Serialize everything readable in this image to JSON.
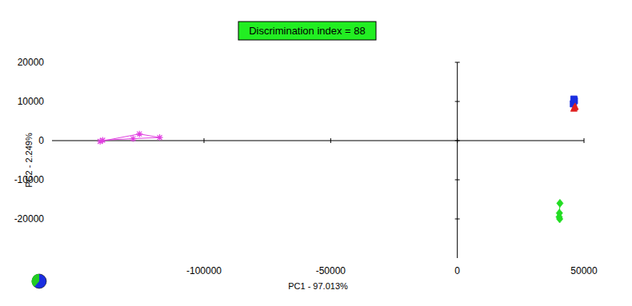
{
  "chart_data": {
    "type": "scatter",
    "title": "Discrimination index = 88",
    "x_label": "PC1 - 97.013%",
    "y_label": "PC2 - 2.249%",
    "xlim": [
      -160000,
      50000
    ],
    "ylim": [
      -30000,
      20000
    ],
    "xticks": [
      -100000,
      -50000,
      0,
      50000
    ],
    "yticks": [
      20000,
      10000,
      0,
      -10000,
      -20000
    ],
    "grid": false,
    "series": [
      {
        "color": "#e040e0",
        "marker": "star",
        "line_style": "solid",
        "x": [
          -141000,
          -125500,
          -117500,
          -128000,
          -140000
        ],
        "values": [
          -200,
          1700,
          800,
          500,
          100
        ]
      },
      {
        "color": "#1a2ee0",
        "marker": "square",
        "line_style": "none",
        "x": [
          45800,
          46200,
          46000
        ],
        "values": [
          9400,
          10200,
          10600
        ]
      },
      {
        "color": "#e02020",
        "marker": "triangle",
        "line_style": "none",
        "x": [
          46300,
          46000,
          46500
        ],
        "values": [
          8600,
          8300,
          8800
        ]
      },
      {
        "color": "#22dd22",
        "marker": "diamond",
        "line_style": "solid",
        "x": [
          40500,
          40300,
          40200,
          40400
        ],
        "values": [
          -16000,
          -18500,
          -19500,
          -20000
        ]
      }
    ]
  }
}
